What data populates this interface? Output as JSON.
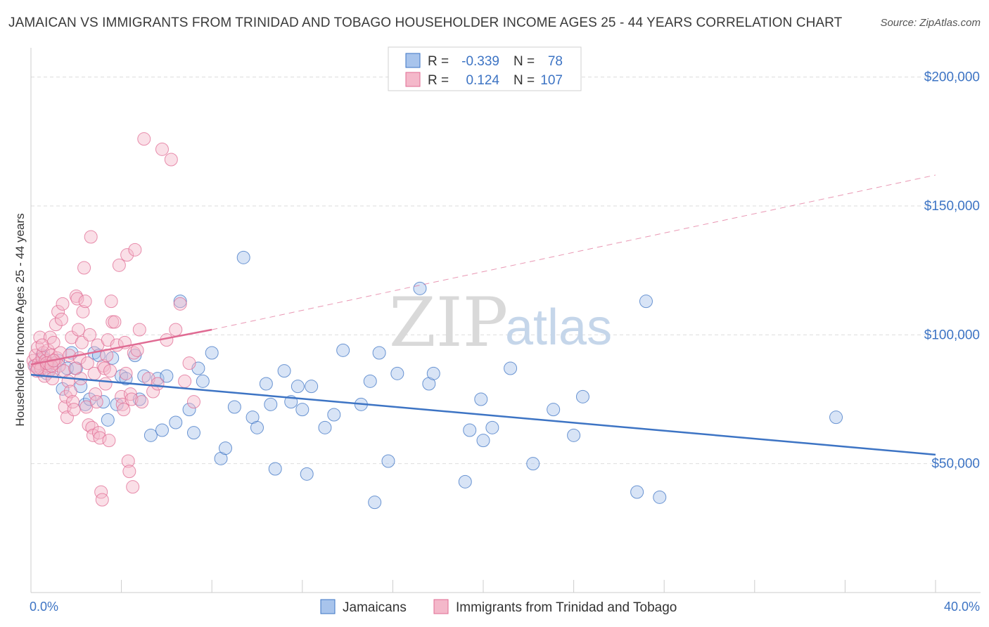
{
  "title": "JAMAICAN VS IMMIGRANTS FROM TRINIDAD AND TOBAGO HOUSEHOLDER INCOME AGES 25 - 44 YEARS CORRELATION CHART",
  "source": "Source: ZipAtlas.com",
  "watermark": {
    "zip": "ZIP",
    "atlas": "atlas"
  },
  "colors": {
    "blue": "#3d74c4",
    "blue_fill": "#a8c4ec",
    "pink": "#e06b93",
    "pink_fill": "#f4b8ca",
    "grid": "#dddddd"
  },
  "legend": {
    "rows": [
      {
        "r_label": "R =",
        "r_value": "-0.339",
        "n_label": "N =",
        "n_value": "78",
        "color": "#a8c4ec"
      },
      {
        "r_label": "R =",
        "r_value": "0.124",
        "n_label": "N =",
        "n_value": "107",
        "color": "#f4b8ca"
      }
    ]
  },
  "bottom_legend": [
    "Jamaicans",
    "Immigrants from Trinidad and Tobago"
  ],
  "chart_data": {
    "type": "scatter",
    "xlabel": "",
    "ylabel": "Householder Income Ages 25 - 44 years",
    "xlim": [
      0,
      40
    ],
    "ylim": [
      0,
      210000
    ],
    "x_tick_labels": [
      "0.0%",
      "40.0%"
    ],
    "y_ticks": [
      {
        "value": 200000,
        "label": "$200,000"
      },
      {
        "value": 150000,
        "label": "$150,000"
      },
      {
        "value": 100000,
        "label": "$100,000"
      },
      {
        "value": 50000,
        "label": "$50,000"
      }
    ],
    "grid": true,
    "series": [
      {
        "name": "Jamaicans",
        "color": "#3d74c4",
        "trend": {
          "x": [
            0,
            40
          ],
          "y": [
            84500,
            53500
          ],
          "style": "solid"
        },
        "points": [
          [
            0.2,
            88000
          ],
          [
            0.4,
            86000
          ],
          [
            0.5,
            92000
          ],
          [
            0.7,
            85000
          ],
          [
            0.8,
            89000
          ],
          [
            1.0,
            86000
          ],
          [
            1.2,
            90000
          ],
          [
            1.4,
            79000
          ],
          [
            1.6,
            87000
          ],
          [
            1.8,
            93000
          ],
          [
            2.0,
            87000
          ],
          [
            2.2,
            80000
          ],
          [
            2.4,
            73000
          ],
          [
            2.6,
            75000
          ],
          [
            2.8,
            93000
          ],
          [
            3.0,
            92000
          ],
          [
            3.2,
            74000
          ],
          [
            3.4,
            67000
          ],
          [
            3.6,
            91000
          ],
          [
            3.8,
            73000
          ],
          [
            4.0,
            84000
          ],
          [
            4.2,
            83000
          ],
          [
            4.6,
            92000
          ],
          [
            4.8,
            75000
          ],
          [
            5.0,
            84000
          ],
          [
            5.3,
            61000
          ],
          [
            5.6,
            83000
          ],
          [
            5.8,
            63000
          ],
          [
            6.0,
            84000
          ],
          [
            6.4,
            66000
          ],
          [
            6.6,
            113000
          ],
          [
            7.0,
            71000
          ],
          [
            7.2,
            62000
          ],
          [
            7.4,
            87000
          ],
          [
            7.6,
            82000
          ],
          [
            8.0,
            93000
          ],
          [
            8.4,
            52000
          ],
          [
            8.6,
            56000
          ],
          [
            9.0,
            72000
          ],
          [
            9.4,
            130000
          ],
          [
            9.8,
            68000
          ],
          [
            10.0,
            64000
          ],
          [
            10.4,
            81000
          ],
          [
            10.6,
            73000
          ],
          [
            10.8,
            48000
          ],
          [
            11.2,
            86000
          ],
          [
            11.5,
            74000
          ],
          [
            11.8,
            80000
          ],
          [
            12.0,
            71000
          ],
          [
            12.2,
            46000
          ],
          [
            12.4,
            80000
          ],
          [
            13.0,
            64000
          ],
          [
            13.4,
            69000
          ],
          [
            13.8,
            94000
          ],
          [
            14.6,
            73000
          ],
          [
            15.0,
            82000
          ],
          [
            15.2,
            35000
          ],
          [
            15.4,
            93000
          ],
          [
            15.8,
            51000
          ],
          [
            16.2,
            85000
          ],
          [
            17.2,
            118000
          ],
          [
            17.6,
            81000
          ],
          [
            17.8,
            85000
          ],
          [
            19.2,
            43000
          ],
          [
            19.4,
            63000
          ],
          [
            19.9,
            75000
          ],
          [
            20.0,
            59000
          ],
          [
            20.4,
            64000
          ],
          [
            21.2,
            87000
          ],
          [
            22.2,
            50000
          ],
          [
            23.1,
            71000
          ],
          [
            24.0,
            61000
          ],
          [
            24.4,
            76000
          ],
          [
            26.8,
            39000
          ],
          [
            27.2,
            113000
          ],
          [
            27.8,
            37000
          ],
          [
            35.6,
            68000
          ],
          [
            0.6,
            91000
          ]
        ]
      },
      {
        "name": "Immigrants from Trinidad and Tobago",
        "color": "#e06b93",
        "trend": {
          "x": [
            0,
            8.0
          ],
          "y": [
            88500,
            102000
          ],
          "style": "solid"
        },
        "trend_extended": {
          "x": [
            8.0,
            40
          ],
          "y": [
            102000,
            162000
          ],
          "style": "dashed"
        },
        "points": [
          [
            0.1,
            90000
          ],
          [
            0.15,
            88000
          ],
          [
            0.2,
            92000
          ],
          [
            0.25,
            86000
          ],
          [
            0.3,
            95000
          ],
          [
            0.35,
            89000
          ],
          [
            0.4,
            99000
          ],
          [
            0.45,
            87000
          ],
          [
            0.5,
            91000
          ],
          [
            0.55,
            93000
          ],
          [
            0.6,
            84000
          ],
          [
            0.65,
            90000
          ],
          [
            0.7,
            88000
          ],
          [
            0.75,
            94000
          ],
          [
            0.8,
            86000
          ],
          [
            0.85,
            99000
          ],
          [
            0.9,
            92000
          ],
          [
            0.95,
            83000
          ],
          [
            1.0,
            97000
          ],
          [
            1.05,
            89000
          ],
          [
            1.1,
            104000
          ],
          [
            1.15,
            91000
          ],
          [
            1.2,
            109000
          ],
          [
            1.25,
            88000
          ],
          [
            1.3,
            93000
          ],
          [
            1.35,
            106000
          ],
          [
            1.4,
            112000
          ],
          [
            1.45,
            86000
          ],
          [
            1.5,
            72000
          ],
          [
            1.55,
            76000
          ],
          [
            1.6,
            68000
          ],
          [
            1.65,
            82000
          ],
          [
            1.7,
            92000
          ],
          [
            1.75,
            78000
          ],
          [
            1.8,
            99000
          ],
          [
            1.85,
            74000
          ],
          [
            1.9,
            71000
          ],
          [
            1.95,
            87000
          ],
          [
            2.0,
            115000
          ],
          [
            2.05,
            114000
          ],
          [
            2.1,
            102000
          ],
          [
            2.15,
            91000
          ],
          [
            2.2,
            83000
          ],
          [
            2.25,
            97000
          ],
          [
            2.3,
            109000
          ],
          [
            2.35,
            126000
          ],
          [
            2.4,
            113000
          ],
          [
            2.45,
            72000
          ],
          [
            2.5,
            89000
          ],
          [
            2.55,
            65000
          ],
          [
            2.6,
            100000
          ],
          [
            2.65,
            138000
          ],
          [
            2.7,
            64000
          ],
          [
            2.75,
            61000
          ],
          [
            2.8,
            85000
          ],
          [
            2.85,
            77000
          ],
          [
            2.9,
            74000
          ],
          [
            2.95,
            96000
          ],
          [
            3.0,
            62000
          ],
          [
            3.05,
            60000
          ],
          [
            3.1,
            39000
          ],
          [
            3.15,
            36000
          ],
          [
            3.2,
            88000
          ],
          [
            3.25,
            87000
          ],
          [
            3.3,
            81000
          ],
          [
            3.35,
            92000
          ],
          [
            3.4,
            98000
          ],
          [
            3.45,
            59000
          ],
          [
            3.5,
            86000
          ],
          [
            3.55,
            113000
          ],
          [
            3.6,
            105000
          ],
          [
            3.7,
            105000
          ],
          [
            3.8,
            96000
          ],
          [
            3.9,
            127000
          ],
          [
            4.0,
            76000
          ],
          [
            4.05,
            73000
          ],
          [
            4.1,
            71000
          ],
          [
            4.15,
            97000
          ],
          [
            4.2,
            85000
          ],
          [
            4.25,
            131000
          ],
          [
            4.3,
            51000
          ],
          [
            4.35,
            47000
          ],
          [
            4.4,
            77000
          ],
          [
            4.45,
            75000
          ],
          [
            4.5,
            41000
          ],
          [
            4.55,
            93000
          ],
          [
            4.6,
            133000
          ],
          [
            4.7,
            94000
          ],
          [
            4.8,
            102000
          ],
          [
            4.9,
            74000
          ],
          [
            5.0,
            176000
          ],
          [
            5.2,
            83000
          ],
          [
            5.4,
            78000
          ],
          [
            5.6,
            81000
          ],
          [
            5.8,
            172000
          ],
          [
            6.0,
            98000
          ],
          [
            6.2,
            168000
          ],
          [
            6.4,
            102000
          ],
          [
            6.6,
            112000
          ],
          [
            6.8,
            82000
          ],
          [
            7.0,
            89000
          ],
          [
            7.2,
            74000
          ],
          [
            0.3,
            87000
          ],
          [
            0.5,
            96000
          ],
          [
            0.7,
            89000
          ],
          [
            0.9,
            88000
          ],
          [
            1.0,
            90000
          ]
        ]
      }
    ]
  }
}
